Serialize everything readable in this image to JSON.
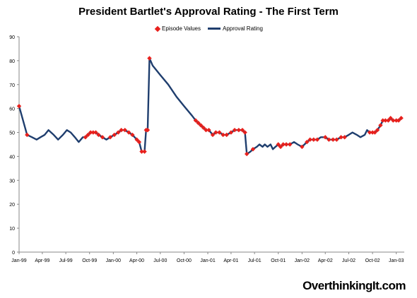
{
  "chart_data": {
    "type": "line",
    "title": "President Bartlet's Approval Rating - The First Term",
    "xlabel": "",
    "ylabel": "",
    "ylim": [
      0,
      90
    ],
    "yticks": [
      0,
      10,
      20,
      30,
      40,
      50,
      60,
      70,
      80,
      90
    ],
    "xlim": [
      "1999-01-01",
      "2003-02-01"
    ],
    "xticks": [
      {
        "date": "1999-01-01",
        "label": "Jan-99"
      },
      {
        "date": "1999-04-01",
        "label": "Apr-99"
      },
      {
        "date": "1999-07-01",
        "label": "Jul-99"
      },
      {
        "date": "1999-10-01",
        "label": "Oct-99"
      },
      {
        "date": "2000-01-01",
        "label": "Jan-00"
      },
      {
        "date": "2000-04-01",
        "label": "Apr-00"
      },
      {
        "date": "2000-07-01",
        "label": "Jul-00"
      },
      {
        "date": "2000-10-01",
        "label": "Oct-00"
      },
      {
        "date": "2001-01-01",
        "label": "Jan-01"
      },
      {
        "date": "2001-04-01",
        "label": "Apr-01"
      },
      {
        "date": "2001-07-01",
        "label": "Jul-01"
      },
      {
        "date": "2001-10-01",
        "label": "Oct-01"
      },
      {
        "date": "2002-01-01",
        "label": "Jan-02"
      },
      {
        "date": "2002-04-01",
        "label": "Apr-02"
      },
      {
        "date": "2002-07-01",
        "label": "Jul-02"
      },
      {
        "date": "2002-10-01",
        "label": "Oct-02"
      },
      {
        "date": "2003-01-01",
        "label": "Jan-03"
      }
    ],
    "grid": false,
    "legend_position": "top-center",
    "series": [
      {
        "name": "Episode Values",
        "style": "markers",
        "color": "#e8201c",
        "marker": "diamond",
        "points": [
          [
            "1999-01-01",
            61
          ],
          [
            "1999-02-01",
            49
          ],
          [
            "1999-09-15",
            48
          ],
          [
            "1999-09-25",
            49
          ],
          [
            "1999-10-05",
            50
          ],
          [
            "1999-10-15",
            50
          ],
          [
            "1999-10-25",
            50
          ],
          [
            "1999-11-05",
            49
          ],
          [
            "1999-11-20",
            48
          ],
          [
            "1999-12-20",
            48
          ],
          [
            "2000-01-05",
            49
          ],
          [
            "2000-01-20",
            50
          ],
          [
            "2000-02-01",
            51
          ],
          [
            "2000-02-15",
            51
          ],
          [
            "2000-03-01",
            50
          ],
          [
            "2000-03-15",
            49
          ],
          [
            "2000-04-01",
            47
          ],
          [
            "2000-04-10",
            46
          ],
          [
            "2000-04-20",
            42
          ],
          [
            "2000-05-01",
            42
          ],
          [
            "2000-05-07",
            51
          ],
          [
            "2000-05-13",
            51
          ],
          [
            "2000-05-20",
            81
          ],
          [
            "2000-11-15",
            55
          ],
          [
            "2000-11-25",
            54
          ],
          [
            "2000-12-05",
            53
          ],
          [
            "2000-12-15",
            52
          ],
          [
            "2000-12-25",
            51
          ],
          [
            "2001-01-05",
            51
          ],
          [
            "2001-01-20",
            49
          ],
          [
            "2001-02-01",
            50
          ],
          [
            "2001-02-15",
            50
          ],
          [
            "2001-03-01",
            49
          ],
          [
            "2001-03-15",
            49
          ],
          [
            "2001-04-01",
            50
          ],
          [
            "2001-04-15",
            51
          ],
          [
            "2001-05-01",
            51
          ],
          [
            "2001-05-15",
            51
          ],
          [
            "2001-05-25",
            50
          ],
          [
            "2001-06-01",
            41
          ],
          [
            "2001-06-25",
            43
          ],
          [
            "2001-10-01",
            45
          ],
          [
            "2001-10-10",
            44
          ],
          [
            "2001-10-20",
            45
          ],
          [
            "2001-11-01",
            45
          ],
          [
            "2001-11-15",
            45
          ],
          [
            "2002-01-01",
            44
          ],
          [
            "2002-01-20",
            46
          ],
          [
            "2002-02-01",
            47
          ],
          [
            "2002-02-15",
            47
          ],
          [
            "2002-03-01",
            47
          ],
          [
            "2002-04-01",
            48
          ],
          [
            "2002-04-15",
            47
          ],
          [
            "2002-05-01",
            47
          ],
          [
            "2002-05-15",
            47
          ],
          [
            "2002-06-01",
            48
          ],
          [
            "2002-06-15",
            48
          ],
          [
            "2002-09-20",
            50
          ],
          [
            "2002-10-01",
            50
          ],
          [
            "2002-10-10",
            50
          ],
          [
            "2002-10-20",
            51
          ],
          [
            "2002-11-01",
            53
          ],
          [
            "2002-11-10",
            55
          ],
          [
            "2002-11-20",
            55
          ],
          [
            "2002-12-01",
            55
          ],
          [
            "2002-12-10",
            56
          ],
          [
            "2002-12-20",
            55
          ],
          [
            "2003-01-01",
            55
          ],
          [
            "2003-01-10",
            55
          ],
          [
            "2003-01-20",
            56
          ]
        ]
      },
      {
        "name": "Approval Rating",
        "style": "line",
        "color": "#1f3e6e",
        "points": [
          [
            "1999-01-01",
            61
          ],
          [
            "1999-02-01",
            49
          ],
          [
            "1999-02-20",
            48
          ],
          [
            "1999-03-10",
            47
          ],
          [
            "1999-03-25",
            48
          ],
          [
            "1999-04-10",
            49
          ],
          [
            "1999-04-25",
            51
          ],
          [
            "1999-05-15",
            49
          ],
          [
            "1999-06-01",
            47
          ],
          [
            "1999-06-20",
            49
          ],
          [
            "1999-07-05",
            51
          ],
          [
            "1999-07-20",
            50
          ],
          [
            "1999-08-05",
            48
          ],
          [
            "1999-08-20",
            46
          ],
          [
            "1999-09-05",
            48
          ],
          [
            "1999-09-15",
            48
          ],
          [
            "1999-09-25",
            49
          ],
          [
            "1999-10-05",
            50
          ],
          [
            "1999-10-15",
            50
          ],
          [
            "1999-10-25",
            50
          ],
          [
            "1999-11-05",
            49
          ],
          [
            "1999-11-20",
            48
          ],
          [
            "1999-12-05",
            47
          ],
          [
            "1999-12-20",
            48
          ],
          [
            "2000-01-05",
            49
          ],
          [
            "2000-01-20",
            50
          ],
          [
            "2000-02-01",
            51
          ],
          [
            "2000-02-15",
            51
          ],
          [
            "2000-03-01",
            50
          ],
          [
            "2000-03-15",
            49
          ],
          [
            "2000-04-01",
            47
          ],
          [
            "2000-04-10",
            46
          ],
          [
            "2000-04-20",
            42
          ],
          [
            "2000-05-01",
            42
          ],
          [
            "2000-05-07",
            51
          ],
          [
            "2000-05-13",
            51
          ],
          [
            "2000-05-20",
            81
          ],
          [
            "2000-06-01",
            78
          ],
          [
            "2000-07-01",
            74
          ],
          [
            "2000-08-01",
            70
          ],
          [
            "2000-09-01",
            65
          ],
          [
            "2000-10-01",
            61
          ],
          [
            "2000-11-01",
            57
          ],
          [
            "2000-11-15",
            55
          ],
          [
            "2000-11-25",
            54
          ],
          [
            "2000-12-05",
            53
          ],
          [
            "2000-12-15",
            52
          ],
          [
            "2000-12-25",
            51
          ],
          [
            "2001-01-05",
            51
          ],
          [
            "2001-01-20",
            49
          ],
          [
            "2001-02-01",
            50
          ],
          [
            "2001-02-15",
            50
          ],
          [
            "2001-03-01",
            49
          ],
          [
            "2001-03-15",
            49
          ],
          [
            "2001-04-01",
            50
          ],
          [
            "2001-04-15",
            51
          ],
          [
            "2001-05-01",
            51
          ],
          [
            "2001-05-15",
            51
          ],
          [
            "2001-05-25",
            50
          ],
          [
            "2001-06-01",
            41
          ],
          [
            "2001-06-15",
            42
          ],
          [
            "2001-06-25",
            43
          ],
          [
            "2001-07-10",
            44
          ],
          [
            "2001-07-20",
            45
          ],
          [
            "2001-08-01",
            44
          ],
          [
            "2001-08-10",
            45
          ],
          [
            "2001-08-20",
            44
          ],
          [
            "2001-09-01",
            45
          ],
          [
            "2001-09-10",
            43
          ],
          [
            "2001-09-20",
            44
          ],
          [
            "2001-10-01",
            45
          ],
          [
            "2001-10-10",
            44
          ],
          [
            "2001-10-20",
            45
          ],
          [
            "2001-11-01",
            45
          ],
          [
            "2001-11-15",
            45
          ],
          [
            "2001-12-01",
            46
          ],
          [
            "2001-12-15",
            45
          ],
          [
            "2002-01-01",
            44
          ],
          [
            "2002-01-20",
            46
          ],
          [
            "2002-02-01",
            47
          ],
          [
            "2002-02-15",
            47
          ],
          [
            "2002-03-01",
            47
          ],
          [
            "2002-03-15",
            48
          ],
          [
            "2002-04-01",
            48
          ],
          [
            "2002-04-15",
            47
          ],
          [
            "2002-05-01",
            47
          ],
          [
            "2002-05-15",
            47
          ],
          [
            "2002-06-01",
            48
          ],
          [
            "2002-06-15",
            48
          ],
          [
            "2002-07-01",
            49
          ],
          [
            "2002-07-15",
            50
          ],
          [
            "2002-08-01",
            49
          ],
          [
            "2002-08-15",
            48
          ],
          [
            "2002-09-01",
            49
          ],
          [
            "2002-09-10",
            51
          ],
          [
            "2002-09-20",
            50
          ],
          [
            "2002-10-01",
            50
          ],
          [
            "2002-10-10",
            50
          ],
          [
            "2002-10-20",
            51
          ],
          [
            "2002-11-01",
            53
          ],
          [
            "2002-11-10",
            55
          ],
          [
            "2002-11-20",
            55
          ],
          [
            "2002-12-01",
            55
          ],
          [
            "2002-12-10",
            56
          ],
          [
            "2002-12-20",
            55
          ],
          [
            "2003-01-01",
            55
          ],
          [
            "2003-01-10",
            55
          ],
          [
            "2003-01-20",
            56
          ]
        ]
      }
    ]
  },
  "watermark": "OverthinkingIt.com"
}
